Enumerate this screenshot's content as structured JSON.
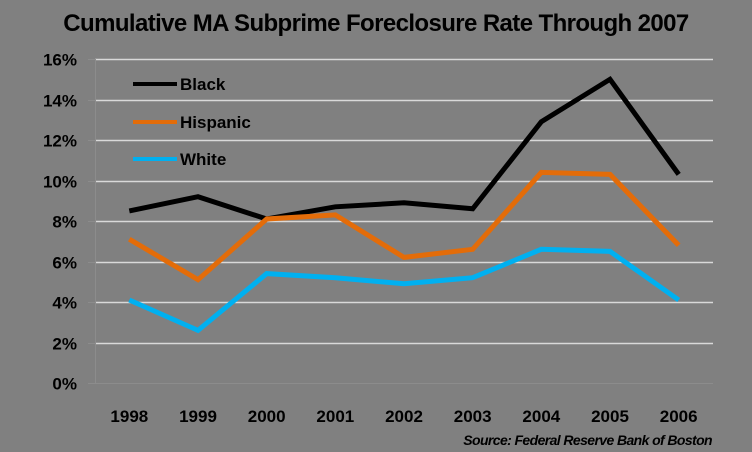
{
  "chart_data": {
    "type": "line",
    "title": "Cumulative MA Subprime Foreclosure Rate Through 2007",
    "xlabel": "",
    "ylabel": "",
    "categories": [
      "1998",
      "1999",
      "2000",
      "2001",
      "2002",
      "2003",
      "2004",
      "2005",
      "2006"
    ],
    "series": [
      {
        "name": "Black",
        "color": "#000000",
        "values": [
          8.5,
          9.2,
          8.1,
          8.7,
          8.9,
          8.6,
          12.9,
          15.0,
          10.3
        ]
      },
      {
        "name": "Hispanic",
        "color": "#E36C09",
        "values": [
          7.1,
          5.1,
          8.1,
          8.3,
          6.2,
          6.6,
          10.4,
          10.3,
          6.8
        ]
      },
      {
        "name": "White",
        "color": "#00B0F0",
        "values": [
          4.1,
          2.6,
          5.4,
          5.2,
          4.9,
          5.2,
          6.6,
          6.5,
          4.1
        ]
      }
    ],
    "ylim": [
      0,
      16
    ],
    "yticks": [
      "0%",
      "2%",
      "4%",
      "6%",
      "8%",
      "10%",
      "12%",
      "14%",
      "16%"
    ],
    "ytick_values": [
      0,
      2,
      4,
      6,
      8,
      10,
      12,
      14,
      16
    ],
    "grid": true,
    "legend_position": "upper-left inside",
    "annotation": "Source: Federal Reserve Bank of Boston"
  },
  "colors": {
    "background": "#808080",
    "gridline": "#D9D9D9",
    "axis": "#8C8C8C"
  }
}
